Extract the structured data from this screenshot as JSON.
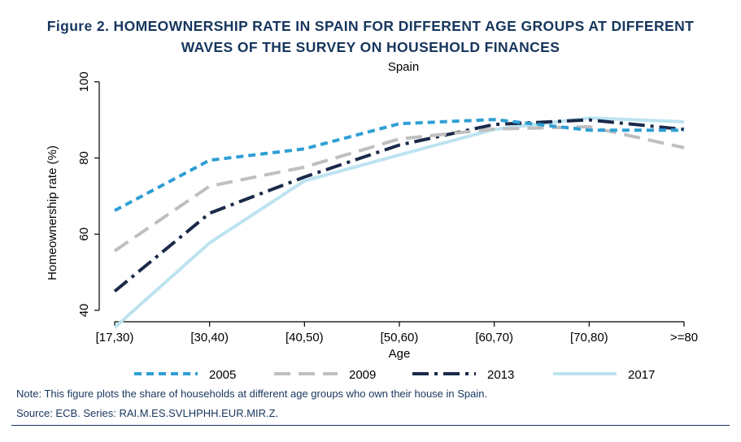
{
  "figure": {
    "title_line1": "Figure 2. HOMEOWNERSHIP RATE IN SPAIN FOR DIFFERENT AGE GROUPS AT DIFFERENT",
    "title_line2": "WAVES OF THE SURVEY ON HOUSEHOLD FINANCES",
    "note": "Note: This figure plots the share of households at different age groups who own their house in Spain.",
    "source": "Source: ECB. Series: RAI.M.ES.SVLHPHH.EUR.MIR.Z."
  },
  "chart_data": {
    "type": "line",
    "title": "Spain",
    "xlabel": "Age",
    "ylabel": "Homeownership rate (%)",
    "categories": [
      "[17,30)",
      "[30,40)",
      "[40,50)",
      "[50,60)",
      "[60,70)",
      "[70,80)",
      ">=80"
    ],
    "ylim": [
      37,
      101
    ],
    "yticks": [
      40,
      60,
      80,
      100
    ],
    "grid": false,
    "legend": "bottom",
    "series": [
      {
        "name": "2005",
        "color": "#2e9fd5",
        "dash": "short-dash",
        "values": [
          66.2,
          79.4,
          82.4,
          89.0,
          90.1,
          87.3,
          87.3
        ]
      },
      {
        "name": "2009",
        "color": "#bfbfbf",
        "dash": "long-dash",
        "values": [
          55.6,
          72.6,
          77.6,
          85.0,
          87.6,
          88.2,
          82.7
        ]
      },
      {
        "name": "2013",
        "color": "#1b2a4a",
        "dash": "dash-dot",
        "values": [
          45.0,
          65.5,
          75.0,
          83.4,
          88.8,
          90.0,
          87.5
        ]
      },
      {
        "name": "2017",
        "color": "#bde3f0",
        "dash": "solid",
        "values": [
          35.5,
          57.7,
          74.0,
          80.8,
          87.5,
          90.5,
          89.5
        ]
      }
    ]
  }
}
